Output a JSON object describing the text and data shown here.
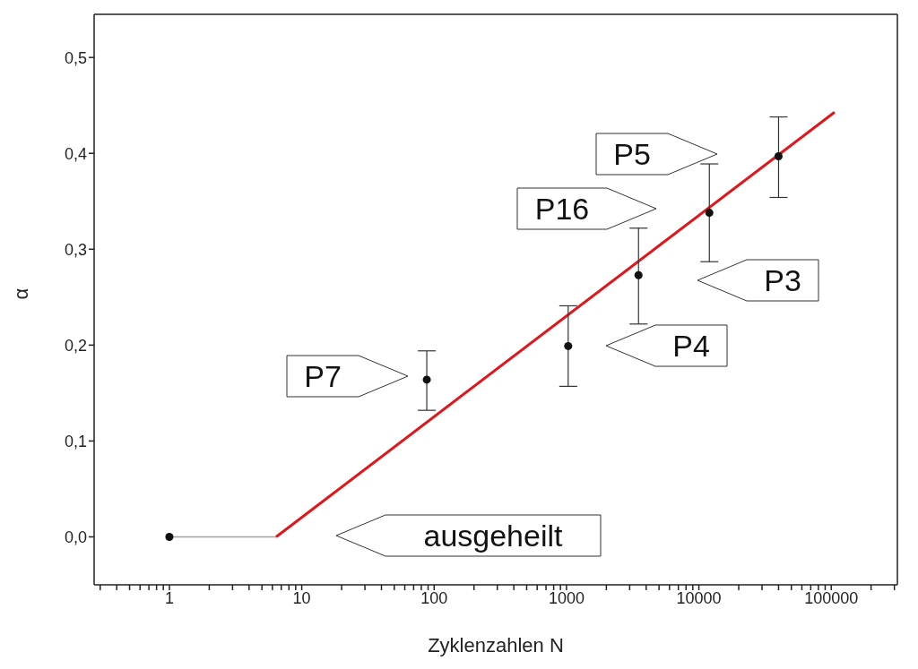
{
  "chart_data": {
    "type": "scatter",
    "xlabel": "Zyklenzahlen N",
    "ylabel": "α",
    "log": "x",
    "xlim": [
      0.27,
      316000
    ],
    "ylim": [
      -0.05,
      0.545
    ],
    "xticks": [
      {
        "value": 0.3,
        "label": null
      },
      {
        "value": 0.4,
        "label": null
      },
      {
        "value": 0.5,
        "label": null
      },
      {
        "value": 0.6,
        "label": null
      },
      {
        "value": 0.7,
        "label": null
      },
      {
        "value": 0.8,
        "label": null
      },
      {
        "value": 0.9,
        "label": null
      },
      1,
      {
        "value": 2,
        "label": null
      },
      {
        "value": 3,
        "label": null
      },
      {
        "value": 4,
        "label": null
      },
      {
        "value": 5,
        "label": null
      },
      {
        "value": 6,
        "label": null
      },
      {
        "value": 7,
        "label": null
      },
      {
        "value": 8,
        "label": null
      },
      {
        "value": 9,
        "label": null
      },
      10,
      {
        "value": 20,
        "label": null
      },
      {
        "value": 30,
        "label": null
      },
      {
        "value": 40,
        "label": null
      },
      {
        "value": 50,
        "label": null
      },
      {
        "value": 60,
        "label": null
      },
      {
        "value": 70,
        "label": null
      },
      {
        "value": 80,
        "label": null
      },
      {
        "value": 90,
        "label": null
      },
      100,
      {
        "value": 200,
        "label": null
      },
      {
        "value": 300,
        "label": null
      },
      {
        "value": 400,
        "label": null
      },
      {
        "value": 500,
        "label": null
      },
      {
        "value": 600,
        "label": null
      },
      {
        "value": 700,
        "label": null
      },
      {
        "value": 800,
        "label": null
      },
      {
        "value": 900,
        "label": null
      },
      1000,
      {
        "value": 2000,
        "label": null
      },
      {
        "value": 3000,
        "label": null
      },
      {
        "value": 4000,
        "label": null
      },
      {
        "value": 5000,
        "label": null
      },
      {
        "value": 6000,
        "label": null
      },
      {
        "value": 7000,
        "label": null
      },
      {
        "value": 8000,
        "label": null
      },
      {
        "value": 9000,
        "label": null
      },
      10000,
      {
        "value": 20000,
        "label": null
      },
      {
        "value": 30000,
        "label": null
      },
      {
        "value": 40000,
        "label": null
      },
      {
        "value": 50000,
        "label": null
      },
      {
        "value": 60000,
        "label": null
      },
      {
        "value": 70000,
        "label": null
      },
      {
        "value": 80000,
        "label": null
      },
      {
        "value": 90000,
        "label": null
      },
      100000,
      {
        "value": 200000,
        "label": null
      },
      {
        "value": 300000,
        "label": null
      }
    ],
    "yticks": [
      {
        "value": 0,
        "label": "0,0"
      },
      {
        "value": 0.1,
        "label": "0,1"
      },
      {
        "value": 0.2,
        "label": "0,2"
      },
      {
        "value": 0.3,
        "label": "0,3"
      },
      {
        "value": 0.4,
        "label": "0,4"
      },
      {
        "value": 0.5,
        "label": "0,5"
      }
    ],
    "series": [
      {
        "type": "line",
        "color": "#a0a0a0",
        "marker": "none",
        "x": [
          1,
          6.4
        ],
        "values": [
          0,
          0
        ]
      },
      {
        "type": "line",
        "color": "#e0161b",
        "marker": "none",
        "x": [
          6.4,
          106000
        ],
        "values": [
          0,
          0.443
        ]
      },
      {
        "color": "#111111",
        "marker": "circle",
        "x": [
          1,
          88,
          1030,
          3500,
          12000,
          40000
        ],
        "values": [
          0,
          0.164,
          0.199,
          0.273,
          0.338,
          0.397
        ],
        "errors": [
          null,
          [
            0.132,
            0.194
          ],
          [
            0.157,
            0.241
          ],
          [
            0.222,
            0.322
          ],
          [
            0.287,
            0.389
          ],
          [
            0.354,
            0.438
          ]
        ]
      }
    ],
    "annotations": [
      "P7",
      "P4",
      "P16",
      "P3",
      "P5",
      "ausgeheilt"
    ]
  }
}
